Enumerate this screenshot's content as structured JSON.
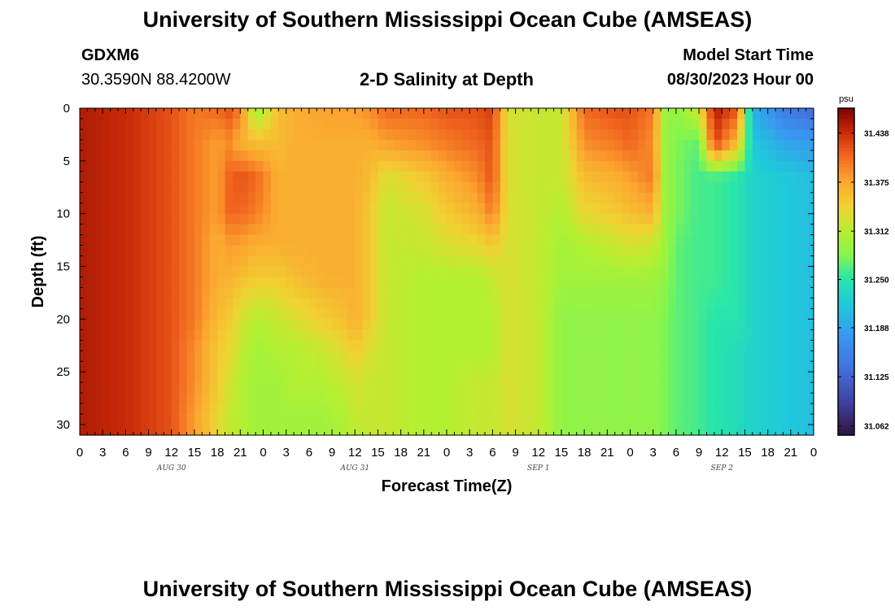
{
  "header": {
    "title": "University of Southern Mississippi Ocean Cube (AMSEAS)",
    "station_id": "GDXM6",
    "location": "30.3590N  88.4200W",
    "plot_title": "2-D Salinity at Depth",
    "model_start_label": "Model Start Time",
    "model_start_value": "08/30/2023 Hour 00"
  },
  "footer": {
    "title": "University of Southern Mississippi Ocean Cube (AMSEAS)"
  },
  "chart_data": {
    "type": "heatmap",
    "title": "2-D Salinity at Depth",
    "xlabel": "Forecast Time(Z)",
    "ylabel": "Depth (ft)",
    "x_hours": [
      0,
      96
    ],
    "y_depth_ft": [
      0,
      31
    ],
    "x_tick_labels": [
      "0",
      "3",
      "6",
      "9",
      "12",
      "15",
      "18",
      "21",
      "0",
      "3",
      "6",
      "9",
      "12",
      "15",
      "18",
      "21",
      "0",
      "3",
      "6",
      "9",
      "12",
      "15",
      "18",
      "21",
      "0",
      "3",
      "6",
      "9",
      "12",
      "15",
      "18",
      "21",
      "0"
    ],
    "date_labels": [
      {
        "label": "AUG 30",
        "hour": 12
      },
      {
        "label": "AUG 31",
        "hour": 36
      },
      {
        "label": "SEP 1",
        "hour": 60
      },
      {
        "label": "SEP 2",
        "hour": 84
      }
    ],
    "y_ticks": [
      0,
      5,
      10,
      15,
      20,
      25,
      30
    ],
    "colorbar": {
      "unit": "psu",
      "min": 31.05,
      "max": 31.47,
      "tick_labels": [
        "31.438",
        "31.375",
        "31.312",
        "31.250",
        "31.188",
        "31.125",
        "31.062"
      ],
      "tick_values": [
        31.438,
        31.375,
        31.312,
        31.25,
        31.188,
        31.125,
        31.062
      ]
    },
    "depth_levels_ft": [
      0,
      3.3,
      6.6,
      9.8,
      13,
      16,
      20,
      23,
      26,
      29.5,
      31
    ],
    "columns": [
      {
        "hour": 0,
        "values": [
          31.45,
          31.45,
          31.45,
          31.45,
          31.45,
          31.45,
          31.45,
          31.45,
          31.45,
          31.45,
          31.45
        ]
      },
      {
        "hour": 6,
        "values": [
          31.44,
          31.44,
          31.44,
          31.44,
          31.44,
          31.44,
          31.44,
          31.44,
          31.44,
          31.44,
          31.44
        ]
      },
      {
        "hour": 12,
        "values": [
          31.42,
          31.42,
          31.42,
          31.42,
          31.42,
          31.42,
          31.42,
          31.42,
          31.42,
          31.42,
          31.42
        ]
      },
      {
        "hour": 15,
        "values": [
          31.4,
          31.4,
          31.4,
          31.4,
          31.4,
          31.4,
          31.4,
          31.39,
          31.39,
          31.38,
          31.38
        ]
      },
      {
        "hour": 18,
        "values": [
          31.41,
          31.38,
          31.38,
          31.38,
          31.37,
          31.37,
          31.36,
          31.35,
          31.35,
          31.34,
          31.34
        ]
      },
      {
        "hour": 19.5,
        "values": [
          31.42,
          31.39,
          31.41,
          31.41,
          31.38,
          31.37,
          31.35,
          31.34,
          31.33,
          31.32,
          31.32
        ]
      },
      {
        "hour": 21,
        "values": [
          31.4,
          31.37,
          31.42,
          31.41,
          31.38,
          31.36,
          31.33,
          31.32,
          31.31,
          31.31,
          31.31
        ]
      },
      {
        "hour": 23,
        "values": [
          31.29,
          31.36,
          31.41,
          31.4,
          31.37,
          31.35,
          31.31,
          31.3,
          31.3,
          31.3,
          31.3
        ]
      },
      {
        "hour": 26,
        "values": [
          31.36,
          31.36,
          31.37,
          31.37,
          31.37,
          31.35,
          31.32,
          31.31,
          31.3,
          31.3,
          31.3
        ]
      },
      {
        "hour": 28,
        "values": [
          31.37,
          31.37,
          31.37,
          31.37,
          31.37,
          31.36,
          31.33,
          31.31,
          31.31,
          31.3,
          31.3
        ]
      },
      {
        "hour": 32,
        "values": [
          31.38,
          31.37,
          31.37,
          31.37,
          31.37,
          31.37,
          31.35,
          31.32,
          31.31,
          31.3,
          31.3
        ]
      },
      {
        "hour": 35,
        "values": [
          31.38,
          31.37,
          31.37,
          31.37,
          31.37,
          31.37,
          31.36,
          31.34,
          31.32,
          31.31,
          31.31
        ]
      },
      {
        "hour": 36,
        "values": [
          31.38,
          31.37,
          31.37,
          31.37,
          31.37,
          31.37,
          31.37,
          31.35,
          31.33,
          31.32,
          31.31
        ]
      },
      {
        "hour": 38,
        "values": [
          31.39,
          31.37,
          31.36,
          31.35,
          31.35,
          31.35,
          31.35,
          31.33,
          31.32,
          31.32,
          31.32
        ]
      },
      {
        "hour": 40,
        "values": [
          31.41,
          31.38,
          31.33,
          31.32,
          31.32,
          31.32,
          31.32,
          31.32,
          31.32,
          31.32,
          31.32
        ]
      },
      {
        "hour": 45,
        "values": [
          31.41,
          31.39,
          31.35,
          31.33,
          31.32,
          31.31,
          31.31,
          31.31,
          31.31,
          31.31,
          31.31
        ]
      },
      {
        "hour": 48,
        "values": [
          31.42,
          31.4,
          31.37,
          31.35,
          31.33,
          31.31,
          31.31,
          31.31,
          31.31,
          31.31,
          31.31
        ]
      },
      {
        "hour": 52,
        "values": [
          31.42,
          31.41,
          31.39,
          31.37,
          31.34,
          31.31,
          31.31,
          31.31,
          31.32,
          31.32,
          31.32
        ]
      },
      {
        "hour": 54,
        "values": [
          31.43,
          31.42,
          31.42,
          31.4,
          31.35,
          31.32,
          31.31,
          31.31,
          31.32,
          31.32,
          31.32
        ]
      },
      {
        "hour": 56,
        "values": [
          31.33,
          31.33,
          31.33,
          31.33,
          31.33,
          31.33,
          31.33,
          31.33,
          31.33,
          31.33,
          31.33
        ]
      },
      {
        "hour": 60,
        "values": [
          31.32,
          31.32,
          31.32,
          31.32,
          31.32,
          31.32,
          31.32,
          31.32,
          31.32,
          31.32,
          31.32
        ]
      },
      {
        "hour": 63,
        "values": [
          31.32,
          31.32,
          31.32,
          31.31,
          31.3,
          31.3,
          31.29,
          31.29,
          31.29,
          31.29,
          31.29
        ]
      },
      {
        "hour": 66,
        "values": [
          31.41,
          31.39,
          31.36,
          31.34,
          31.31,
          31.3,
          31.29,
          31.29,
          31.29,
          31.29,
          31.29
        ]
      },
      {
        "hour": 70,
        "values": [
          31.42,
          31.4,
          31.37,
          31.35,
          31.32,
          31.3,
          31.29,
          31.29,
          31.29,
          31.29,
          31.29
        ]
      },
      {
        "hour": 72,
        "values": [
          31.42,
          31.41,
          31.38,
          31.36,
          31.33,
          31.3,
          31.29,
          31.29,
          31.29,
          31.29,
          31.29
        ]
      },
      {
        "hour": 75,
        "values": [
          31.4,
          31.39,
          31.4,
          31.37,
          31.32,
          31.3,
          31.29,
          31.29,
          31.29,
          31.29,
          31.29
        ]
      },
      {
        "hour": 76.5,
        "values": [
          31.3,
          31.3,
          31.3,
          31.3,
          31.3,
          31.29,
          31.28,
          31.28,
          31.28,
          31.28,
          31.28
        ]
      },
      {
        "hour": 78,
        "values": [
          31.29,
          31.28,
          31.28,
          31.28,
          31.27,
          31.27,
          31.27,
          31.27,
          31.27,
          31.27,
          31.27
        ]
      },
      {
        "hour": 81,
        "values": [
          31.33,
          31.27,
          31.26,
          31.26,
          31.26,
          31.26,
          31.26,
          31.26,
          31.26,
          31.26,
          31.26
        ]
      },
      {
        "hour": 83,
        "values": [
          31.45,
          31.43,
          31.26,
          31.26,
          31.26,
          31.26,
          31.25,
          31.25,
          31.25,
          31.25,
          31.25
        ]
      },
      {
        "hour": 86,
        "values": [
          31.42,
          31.36,
          31.25,
          31.25,
          31.25,
          31.25,
          31.25,
          31.24,
          31.24,
          31.24,
          31.24
        ]
      },
      {
        "hour": 88,
        "values": [
          31.2,
          31.22,
          31.23,
          31.23,
          31.23,
          31.23,
          31.23,
          31.23,
          31.23,
          31.23,
          31.23
        ]
      },
      {
        "hour": 92,
        "values": [
          31.15,
          31.19,
          31.22,
          31.22,
          31.22,
          31.22,
          31.22,
          31.22,
          31.22,
          31.22,
          31.22
        ]
      },
      {
        "hour": 96,
        "values": [
          31.13,
          31.18,
          31.21,
          31.21,
          31.21,
          31.21,
          31.21,
          31.21,
          31.21,
          31.21,
          31.21
        ]
      }
    ]
  }
}
